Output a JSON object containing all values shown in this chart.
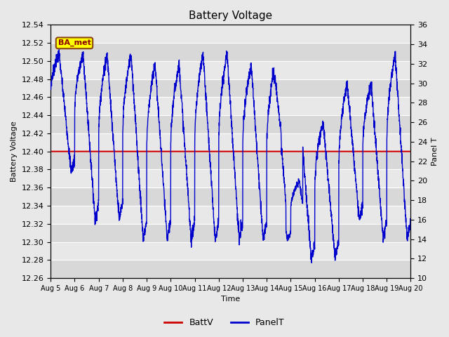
{
  "title": "Battery Voltage",
  "xlabel": "Time",
  "ylabel_left": "Battery Voltage",
  "ylabel_right": "Panel T",
  "ylim_left": [
    12.26,
    12.54
  ],
  "ylim_right": [
    10,
    36
  ],
  "yticks_left": [
    12.26,
    12.28,
    12.3,
    12.32,
    12.34,
    12.36,
    12.38,
    12.4,
    12.42,
    12.44,
    12.46,
    12.48,
    12.5,
    12.52,
    12.54
  ],
  "yticks_right": [
    10,
    12,
    14,
    16,
    18,
    20,
    22,
    24,
    26,
    28,
    30,
    32,
    34,
    36
  ],
  "xtick_labels": [
    "Aug 5",
    "Aug 6",
    "Aug 7",
    "Aug 8",
    "Aug 9",
    "Aug 10",
    "Aug 11",
    "Aug 12",
    "Aug 13",
    "Aug 14",
    "Aug 15",
    "Aug 16",
    "Aug 17",
    "Aug 18",
    "Aug 19",
    "Aug 20"
  ],
  "battv_value": 12.4,
  "battv_color": "#cc0000",
  "panelt_color": "#0000cc",
  "fig_facecolor": "#e8e8e8",
  "plot_facecolor": "#e0e0e0",
  "annotation_text": "BA_met",
  "annotation_bg": "#ffff00",
  "annotation_border": "#8b4513",
  "legend_items": [
    "BattV",
    "PanelT"
  ],
  "title_fontsize": 11,
  "axis_fontsize": 8,
  "tick_fontsize": 8,
  "peak_panelt": [
    33,
    33,
    33,
    33,
    32,
    32,
    33,
    33,
    32,
    32,
    28,
    26,
    30,
    30,
    33,
    34
  ],
  "trough_panelt": [
    21,
    16,
    16,
    14,
    14,
    14,
    14,
    14,
    14,
    16,
    12,
    12,
    16,
    14,
    14,
    18
  ]
}
